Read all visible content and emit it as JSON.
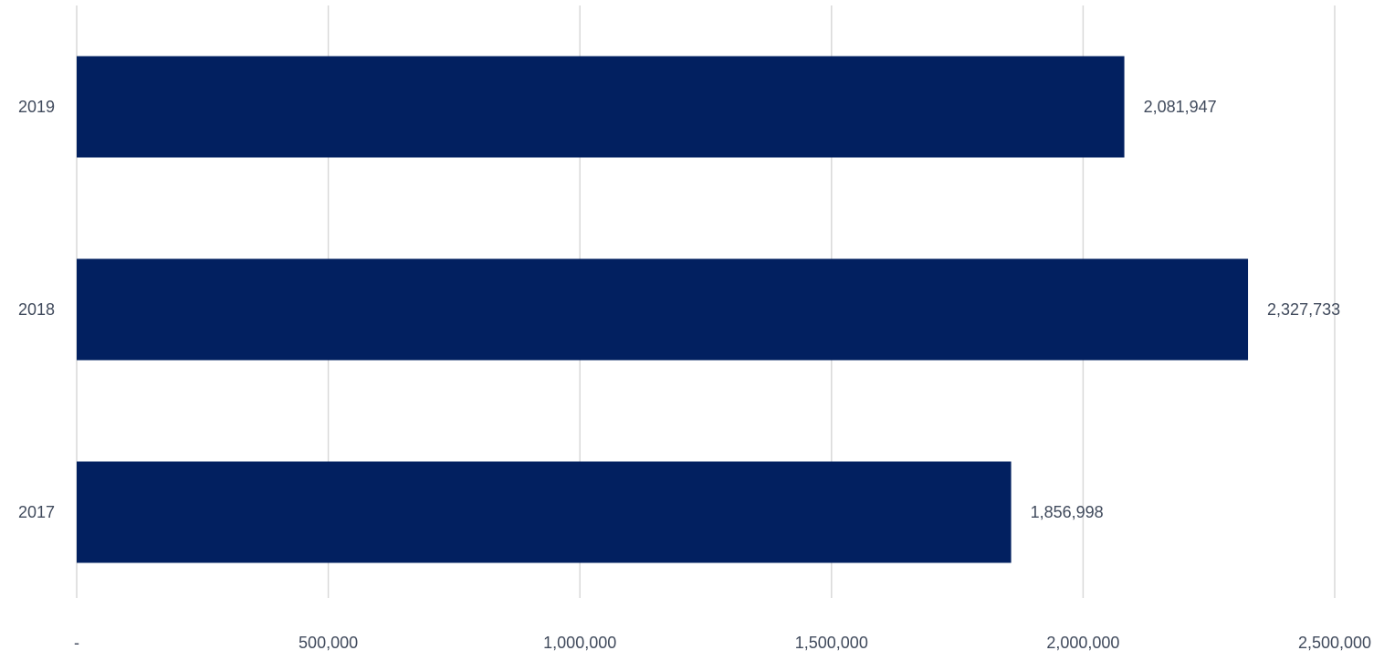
{
  "chart_data": {
    "type": "bar",
    "orientation": "horizontal",
    "title": "",
    "xlabel": "",
    "ylabel": "",
    "categories": [
      "2019",
      "2018",
      "2017"
    ],
    "values": [
      2081947,
      2327733,
      1856998
    ],
    "value_labels": [
      "2,081,947",
      "2,327,733",
      "1,856,998"
    ],
    "xlim": [
      0,
      2500000
    ],
    "x_ticks": [
      0,
      500000,
      1000000,
      1500000,
      2000000,
      2500000
    ],
    "x_tick_labels": [
      "-",
      "500,000",
      "1,000,000",
      "1,500,000",
      "2,000,000",
      "2,500,000"
    ],
    "grid": "vertical",
    "legend": "none",
    "colors": {
      "bar": "#022060",
      "grid": "#d9d9d9",
      "text": "#404a5c"
    }
  }
}
